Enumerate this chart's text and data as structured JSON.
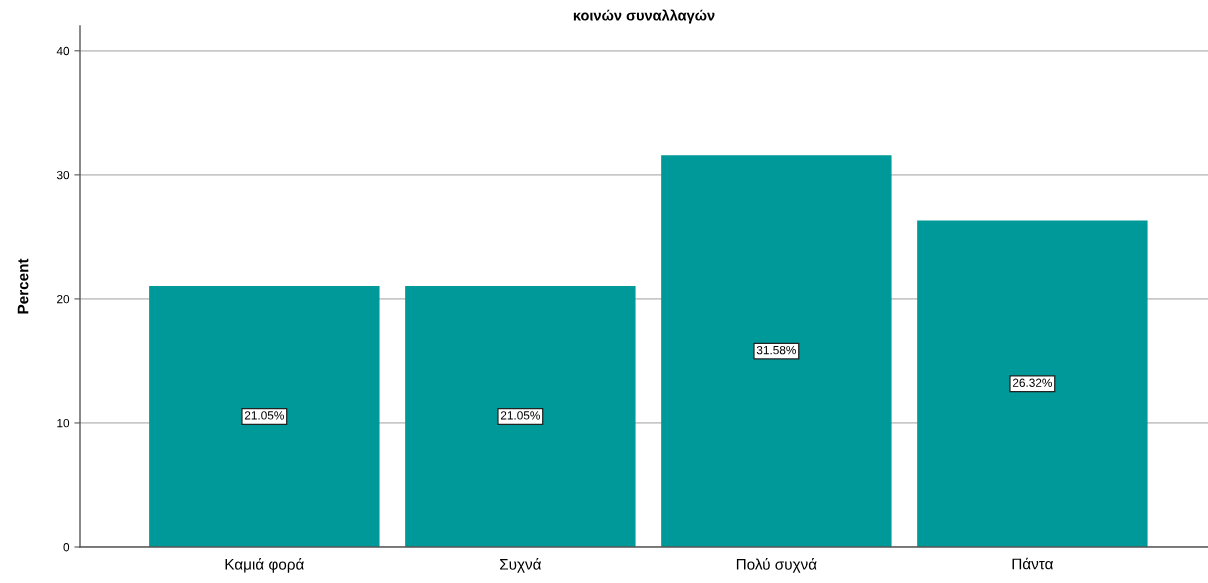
{
  "chart_data": {
    "type": "bar",
    "title": "κοινών συναλλαγών",
    "ylabel": "Percent",
    "categories": [
      "Καμιά φορά",
      "Συχνά",
      "Πολύ συχνά",
      "Πάντα"
    ],
    "values": [
      21.05,
      21.05,
      31.58,
      26.32
    ],
    "value_labels": [
      "21.05%",
      "21.05%",
      "31.58%",
      "26.32%"
    ],
    "color": "#009999",
    "ylim": [
      0,
      42
    ],
    "yticks": [
      0,
      10,
      20,
      30,
      40
    ],
    "grid": "y",
    "legend": false
  }
}
